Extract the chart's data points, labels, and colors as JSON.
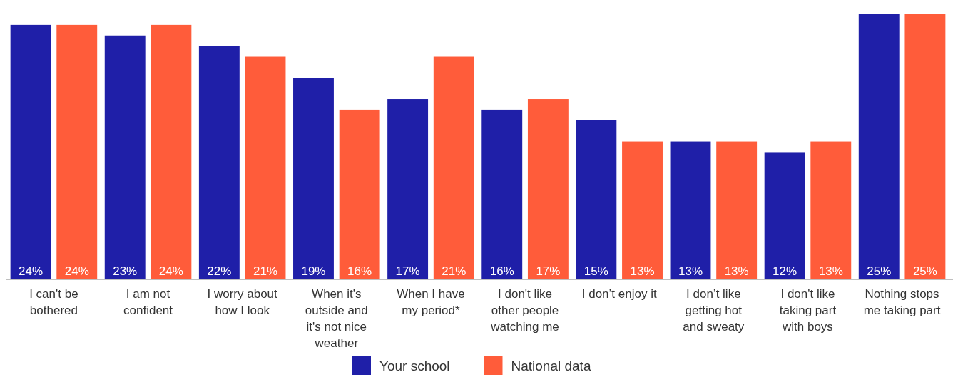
{
  "chart_data": {
    "type": "bar",
    "categories": [
      "I can't be bothered",
      "I am not confident",
      "I worry about how I look",
      "When it's outside and it's not nice weather",
      "When I have my period*",
      "I don't like other people watching me",
      "I don’t enjoy it",
      "I don’t like getting hot and sweaty",
      "I don't like taking part with boys",
      "Nothing stops me taking part"
    ],
    "series": [
      {
        "name": "Your school",
        "color": "#1f1fa8",
        "values": [
          24,
          23,
          22,
          19,
          17,
          16,
          15,
          13,
          12,
          25
        ],
        "value_labels": [
          "24%",
          "23%",
          "22%",
          "19%",
          "17%",
          "16%",
          "15%",
          "13%",
          "12%",
          "25%"
        ]
      },
      {
        "name": "National data",
        "color": "#ff5c3a",
        "values": [
          24,
          24,
          21,
          16,
          21,
          17,
          13,
          13,
          13,
          25
        ],
        "value_labels": [
          "24%",
          "24%",
          "21%",
          "16%",
          "21%",
          "17%",
          "13%",
          "13%",
          "13%",
          "25%"
        ]
      }
    ],
    "legend": "bottom"
  }
}
